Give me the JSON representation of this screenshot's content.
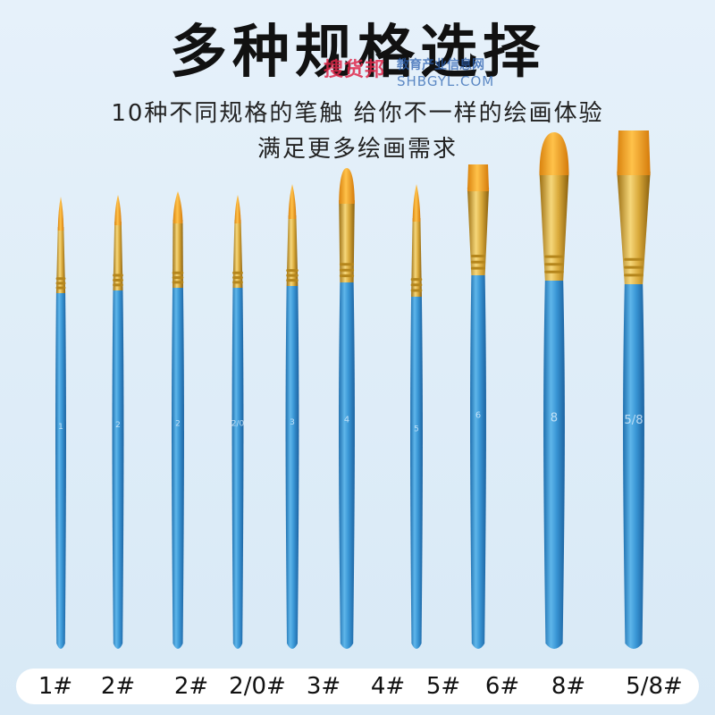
{
  "header": {
    "title": "多种规格选择",
    "subtitle_line1": "10种不同规格的笔触 给你不一样的绘画体验",
    "subtitle_line2": "满足更多绘画需求"
  },
  "watermark": {
    "brand": "搜货邦",
    "sub": "教育产业信息网",
    "url": "SHBGYL.COM"
  },
  "colors": {
    "background": "#dcecf7",
    "handle": "#2f8fcf",
    "ferrule": "#d4a62a",
    "bristle": "#f2a21c"
  },
  "brushes": [
    {
      "size": "1#",
      "handle_mark": "1"
    },
    {
      "size": "2#",
      "handle_mark": "2"
    },
    {
      "size": "2#",
      "handle_mark": "2"
    },
    {
      "size": "2/0#",
      "handle_mark": "2/0"
    },
    {
      "size": "3#",
      "handle_mark": "3"
    },
    {
      "size": "4#",
      "handle_mark": "4"
    },
    {
      "size": "5#",
      "handle_mark": "5"
    },
    {
      "size": "6#",
      "handle_mark": "6"
    },
    {
      "size": "8#",
      "handle_mark": "8"
    },
    {
      "size": "5/8#",
      "handle_mark": "5/8"
    }
  ]
}
